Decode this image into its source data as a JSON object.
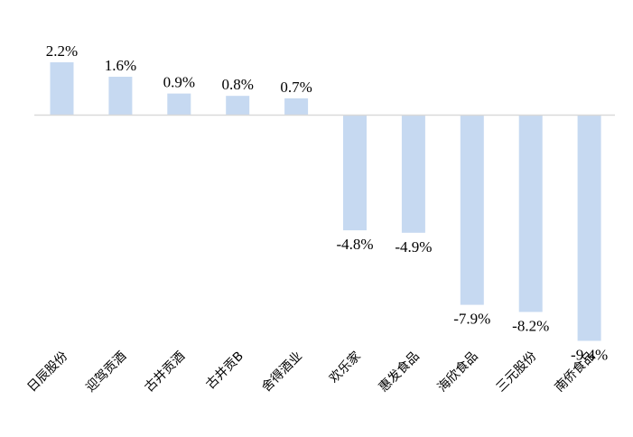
{
  "chart_data": {
    "type": "bar",
    "title": "",
    "xlabel": "",
    "ylabel": "",
    "categories": [
      "日辰股份",
      "迎驾贡酒",
      "古井贡酒",
      "古井贡B",
      "舍得酒业",
      "欢乐家",
      "惠发食品",
      "海欣食品",
      "三元股份",
      "南侨食品"
    ],
    "values": [
      2.2,
      1.6,
      0.9,
      0.8,
      0.7,
      -4.8,
      -4.9,
      -7.9,
      -8.2,
      -9.4
    ],
    "value_labels": [
      "2.2%",
      "1.6%",
      "0.9%",
      "0.8%",
      "0.7%",
      "-4.8%",
      "-4.9%",
      "-7.9%",
      "-8.2%",
      "-9.4%"
    ],
    "ylim": [
      -9.4,
      2.2
    ],
    "grid": false,
    "legend": "none",
    "colors": {
      "bar": "#c6d9f1",
      "axis": "#d9d9d9"
    }
  }
}
